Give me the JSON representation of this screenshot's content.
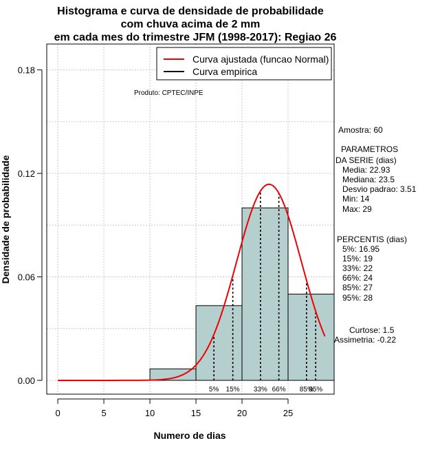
{
  "chart_data": {
    "type": "bar",
    "title_lines": [
      "Histograma e curva de densidade de probabilidade",
      "com chuva acima de 2 mm",
      "em cada mes do trimestre JFM (1998-2017): Regiao 26"
    ],
    "xlabel": "Numero de dias",
    "ylabel": "Densidade de probabilidade",
    "xlim": [
      -1.2,
      30
    ],
    "ylim": [
      -0.008,
      0.195
    ],
    "x_ticks": [
      0,
      5,
      10,
      15,
      20,
      25
    ],
    "y_ticks": [
      0.0,
      0.06,
      0.12,
      0.18
    ],
    "y_tick_labels": [
      "0.00",
      "0.06",
      "0.12",
      "0.18"
    ],
    "grid": true,
    "bins": [
      {
        "start": 10,
        "end": 15,
        "density": 0.00667
      },
      {
        "start": 15,
        "end": 20,
        "density": 0.04333
      },
      {
        "start": 20,
        "end": 25,
        "density": 0.1
      },
      {
        "start": 25,
        "end": 30,
        "density": 0.05
      }
    ],
    "bar_color": "#b5cece",
    "normal_curve": {
      "mean": 22.93,
      "sd": 3.51,
      "x_start": 0,
      "x_end": 29,
      "color": "#ee0000"
    },
    "percentiles": [
      {
        "label": "5%",
        "x": 16.95
      },
      {
        "label": "15%",
        "x": 19
      },
      {
        "label": "33%",
        "x": 22
      },
      {
        "label": "66%",
        "x": 24
      },
      {
        "label": "85%",
        "x": 27
      },
      {
        "label": "95%",
        "x": 28
      }
    ],
    "legend": {
      "position": "top-right",
      "entries": [
        {
          "label": "Curva ajustada (funcao Normal)",
          "color": "#ee0000"
        },
        {
          "label": "Curva empirica",
          "color": "#000000"
        }
      ]
    },
    "product_note": "Produto: CPTEC/INPE",
    "side_panel": {
      "sample": "Amostra: 60",
      "params_title_1": "PARAMETROS",
      "params_title_2": "DA SERIE (dias)",
      "params": [
        "Media: 22.93",
        "Mediana: 23.5",
        "Desvio padrao: 3.51",
        "Min: 14",
        "Max: 29"
      ],
      "percentis_title": "PERCENTIS (dias)",
      "percentis": [
        "5%: 16.95",
        "15%: 19",
        "33%: 22",
        "66%: 24",
        "85%: 27",
        "95%: 28"
      ],
      "curtose": "Curtose: 1.5",
      "assimetria": "Assimetria: -0.22"
    }
  }
}
